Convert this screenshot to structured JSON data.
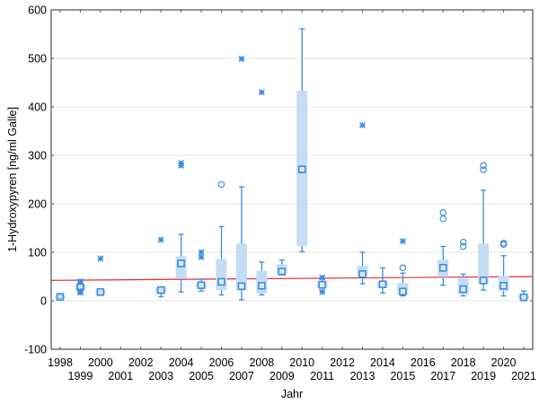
{
  "chart_data": {
    "type": "box",
    "title": "",
    "xlabel": "Jahr",
    "ylabel": "1-Hydroxypyren [ng/ml Galle]",
    "ylim": [
      -100,
      600
    ],
    "yticks": [
      -100,
      0,
      100,
      200,
      300,
      400,
      500,
      600
    ],
    "grid": "horizontal",
    "categories": [
      "1998",
      "1999",
      "2000",
      "2001",
      "2002",
      "2003",
      "2004",
      "2005",
      "2006",
      "2007",
      "2008",
      "2009",
      "2010",
      "2011",
      "2012",
      "2013",
      "2014",
      "2015",
      "2016",
      "2017",
      "2018",
      "2019",
      "2020",
      "2021"
    ],
    "boxes": [
      {
        "year": "1998",
        "median": 8,
        "q1": 6,
        "q3": 10,
        "min": 5,
        "max": 11,
        "outliers": [],
        "extremes": []
      },
      {
        "year": "1999",
        "median": 28,
        "q1": 24,
        "q3": 33,
        "min": 22,
        "max": 36,
        "outliers": [],
        "extremes": [
          17,
          20,
          38,
          40
        ]
      },
      {
        "year": "2000",
        "median": 18,
        "q1": 15,
        "q3": 20,
        "min": 15,
        "max": 20,
        "outliers": [],
        "extremes": [
          87
        ]
      },
      {
        "year": "2001",
        "median": null,
        "q1": null,
        "q3": null,
        "min": null,
        "max": null,
        "outliers": [],
        "extremes": []
      },
      {
        "year": "2002",
        "median": null,
        "q1": null,
        "q3": null,
        "min": null,
        "max": null,
        "outliers": [],
        "extremes": []
      },
      {
        "year": "2003",
        "median": 22,
        "q1": 16,
        "q3": 28,
        "min": 8,
        "max": 28,
        "outliers": [],
        "extremes": [
          126
        ]
      },
      {
        "year": "2004",
        "median": 77,
        "q1": 45,
        "q3": 92,
        "min": 18,
        "max": 137,
        "outliers": [],
        "extremes": [
          279,
          284
        ]
      },
      {
        "year": "2005",
        "median": 32,
        "q1": 27,
        "q3": 37,
        "min": 20,
        "max": 45,
        "outliers": [],
        "extremes": [
          90,
          100
        ]
      },
      {
        "year": "2006",
        "median": 39,
        "q1": 22,
        "q3": 86,
        "min": 12,
        "max": 153,
        "outliers": [
          240
        ],
        "extremes": []
      },
      {
        "year": "2007",
        "median": 30,
        "q1": 22,
        "q3": 118,
        "min": 2,
        "max": 235,
        "outliers": [],
        "extremes": [
          499
        ]
      },
      {
        "year": "2008",
        "median": 31,
        "q1": 15,
        "q3": 62,
        "min": 12,
        "max": 80,
        "outliers": [],
        "extremes": [
          430
        ]
      },
      {
        "year": "2009",
        "median": 60,
        "q1": 57,
        "q3": 75,
        "min": 55,
        "max": 84,
        "outliers": [],
        "extremes": []
      },
      {
        "year": "2010",
        "median": 271,
        "q1": 113,
        "q3": 433,
        "min": 101,
        "max": 561,
        "outliers": [],
        "extremes": []
      },
      {
        "year": "2011",
        "median": 33,
        "q1": 28,
        "q3": 40,
        "min": 20,
        "max": 45,
        "outliers": [],
        "extremes": [
          18,
          48
        ]
      },
      {
        "year": "2012",
        "median": null,
        "q1": null,
        "q3": null,
        "min": null,
        "max": null,
        "outliers": [],
        "extremes": []
      },
      {
        "year": "2013",
        "median": 55,
        "q1": 50,
        "q3": 72,
        "min": 35,
        "max": 100,
        "outliers": [],
        "extremes": [
          362
        ]
      },
      {
        "year": "2014",
        "median": 34,
        "q1": 28,
        "q3": 40,
        "min": 16,
        "max": 68,
        "outliers": [],
        "extremes": []
      },
      {
        "year": "2015",
        "median": 19,
        "q1": 13,
        "q3": 37,
        "min": 10,
        "max": 57,
        "outliers": [
          68
        ],
        "extremes": [
          123
        ]
      },
      {
        "year": "2016",
        "median": null,
        "q1": null,
        "q3": null,
        "min": null,
        "max": null,
        "outliers": [],
        "extremes": []
      },
      {
        "year": "2017",
        "median": 68,
        "q1": 49,
        "q3": 85,
        "min": 32,
        "max": 112,
        "outliers": [
          169,
          182
        ],
        "extremes": []
      },
      {
        "year": "2018",
        "median": 24,
        "q1": 13,
        "q3": 48,
        "min": 10,
        "max": 55,
        "outliers": [
          112,
          121
        ],
        "extremes": []
      },
      {
        "year": "2019",
        "median": 42,
        "q1": 35,
        "q3": 118,
        "min": 22,
        "max": 228,
        "outliers": [
          270,
          279
        ],
        "extremes": []
      },
      {
        "year": "2020",
        "median": 31,
        "q1": 20,
        "q3": 51,
        "min": 10,
        "max": 93,
        "outliers": [
          116,
          119
        ],
        "extremes": []
      },
      {
        "year": "2021",
        "median": 7,
        "q1": 4,
        "q3": 12,
        "min": 4,
        "max": 20,
        "outliers": [],
        "extremes": []
      }
    ],
    "trend_line": {
      "color": "#e8282b",
      "x": [
        "1998",
        "2021"
      ],
      "y": [
        42,
        50
      ]
    },
    "colors": {
      "box_fill": "#c5dcf5",
      "box_line": "#3d8de0",
      "whisker": "#3d8de0",
      "grid": "#e6e6e6",
      "axis": "#5a5a5a"
    }
  }
}
